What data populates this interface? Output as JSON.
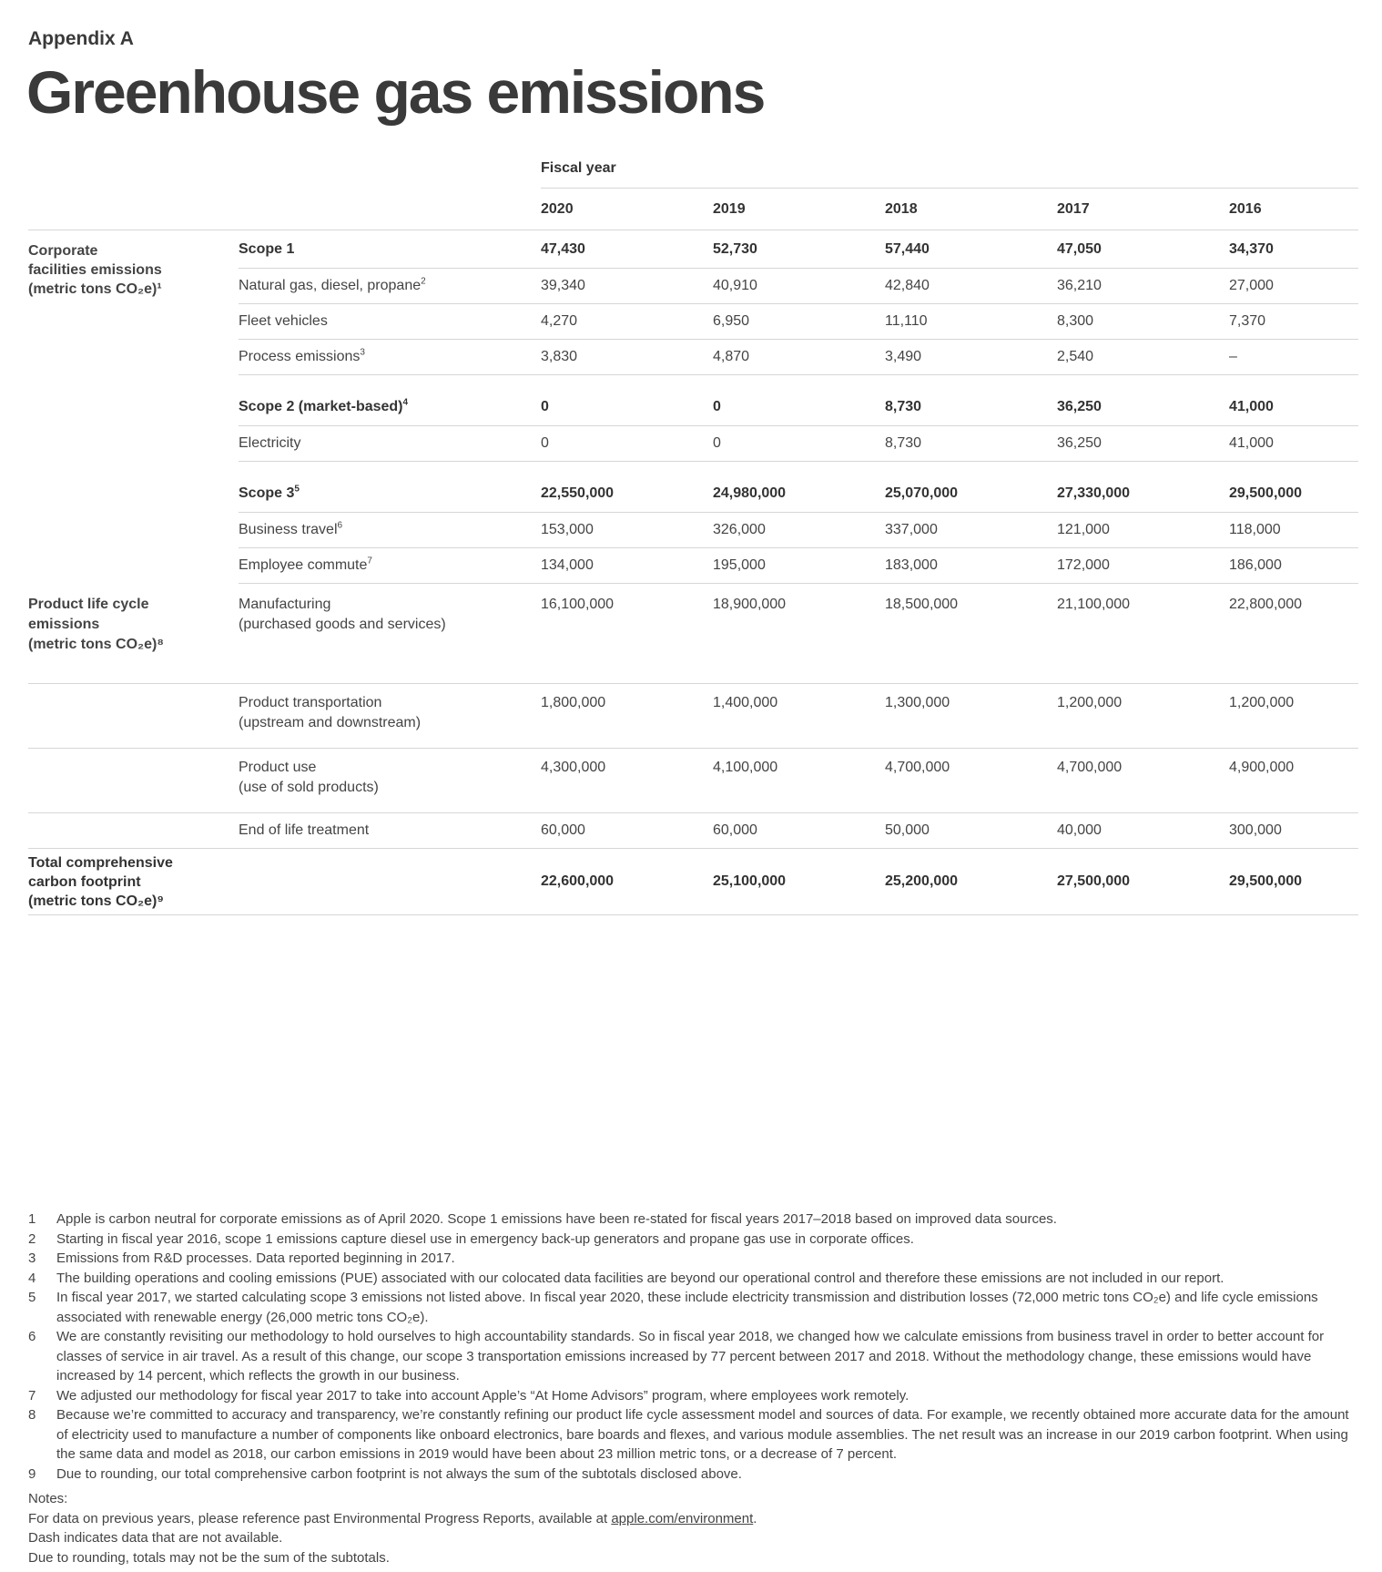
{
  "header": {
    "kicker": "Appendix A",
    "title": "Greenhouse gas emissions"
  },
  "table": {
    "fiscal_year_label": "Fiscal year",
    "years": [
      "2020",
      "2019",
      "2018",
      "2017",
      "2016"
    ],
    "groups": {
      "corporate": [
        "Corporate",
        "facilities emissions",
        "(metric tons CO₂e)¹"
      ],
      "product": [
        "Product life cycle",
        "emissions",
        "(metric tons CO₂e)⁸"
      ],
      "total": [
        "Total comprehensive",
        "carbon footprint",
        "(metric tons CO₂e)⁹"
      ]
    },
    "rows": [
      {
        "label": "Scope 1",
        "sup": "",
        "values": [
          "47,430",
          "52,730",
          "57,440",
          "47,050",
          "34,370"
        ]
      },
      {
        "label": "Natural gas, diesel, propane",
        "sup": "2",
        "values": [
          "39,340",
          "40,910",
          "42,840",
          "36,210",
          "27,000"
        ]
      },
      {
        "label": "Fleet vehicles",
        "sup": "",
        "values": [
          "4,270",
          "6,950",
          "11,110",
          "8,300",
          "7,370"
        ]
      },
      {
        "label": "Process emissions",
        "sup": "3",
        "values": [
          "3,830",
          "4,870",
          "3,490",
          "2,540",
          "–"
        ]
      },
      {
        "label": "Scope 2 (market-based)",
        "sup": "4",
        "values": [
          "0",
          "0",
          "8,730",
          "36,250",
          "41,000"
        ]
      },
      {
        "label": "Electricity",
        "sup": "",
        "values": [
          "0",
          "0",
          "8,730",
          "36,250",
          "41,000"
        ]
      },
      {
        "label": "Scope 3",
        "sup": "5",
        "values": [
          "22,550,000",
          "24,980,000",
          "25,070,000",
          "27,330,000",
          "29,500,000"
        ]
      },
      {
        "label": "Business travel",
        "sup": "6",
        "values": [
          "153,000",
          "326,000",
          "337,000",
          "121,000",
          "118,000"
        ]
      },
      {
        "label": "Employee commute",
        "sup": "7",
        "values": [
          "134,000",
          "195,000",
          "183,000",
          "172,000",
          "186,000"
        ]
      },
      {
        "label": "Manufacturing",
        "label2": "(purchased goods and services)",
        "values": [
          "16,100,000",
          "18,900,000",
          "18,500,000",
          "21,100,000",
          "22,800,000"
        ]
      },
      {
        "label": "Product transportation",
        "label2": "(upstream and downstream)",
        "values": [
          "1,800,000",
          "1,400,000",
          "1,300,000",
          "1,200,000",
          "1,200,000"
        ]
      },
      {
        "label": "Product use",
        "label2": "(use of sold products)",
        "values": [
          "4,300,000",
          "4,100,000",
          "4,700,000",
          "4,700,000",
          "4,900,000"
        ]
      },
      {
        "label": "End of life treatment",
        "values": [
          "60,000",
          "60,000",
          "50,000",
          "40,000",
          "300,000"
        ]
      },
      {
        "label": "",
        "values": [
          "22,600,000",
          "25,100,000",
          "25,200,000",
          "27,500,000",
          "29,500,000"
        ]
      }
    ]
  },
  "footnotes": [
    {
      "n": "1",
      "text": "Apple is carbon neutral for corporate emissions as of April 2020. Scope 1 emissions have been re-stated for fiscal years 2017–2018 based on improved data sources."
    },
    {
      "n": "2",
      "text": "Starting in fiscal year 2016, scope 1 emissions capture diesel use in emergency back-up generators and propane gas use in corporate offices."
    },
    {
      "n": "3",
      "text": "Emissions from R&D processes. Data reported beginning in 2017."
    },
    {
      "n": "4",
      "text": "The building operations and cooling emissions (PUE) associated with our colocated data facilities are beyond our operational control and therefore these emissions are not included in our report."
    },
    {
      "n": "5",
      "text": "In fiscal year 2017, we started calculating scope 3 emissions not listed above. In fiscal year 2020, these include electricity transmission and distribution losses (72,000 metric tons CO₂e) and life cycle emissions associated with renewable energy (26,000 metric tons CO₂e)."
    },
    {
      "n": "6",
      "text": "We are constantly revisiting our methodology to hold ourselves to high accountability standards. So in fiscal year 2018, we changed how we calculate emissions from business travel in order to better account for classes of service in air travel. As a result of this change, our scope 3 transportation emissions increased by 77 percent between 2017 and 2018. Without the methodology change, these emissions would have increased by 14 percent, which reflects the growth in our business."
    },
    {
      "n": "7",
      "text": "We adjusted our methodology for fiscal year 2017 to take into account Apple’s “At Home Advisors” program, where employees work remotely."
    },
    {
      "n": "8",
      "text": "Because we’re committed to accuracy and transparency, we’re constantly refining our product life cycle assessment model and sources of data. For example, we recently obtained more accurate data for the amount of electricity used to manufacture a number of components like onboard electronics, bare boards and flexes, and various module assemblies. The net result was an increase in our 2019 carbon footprint. When using the same data and model as 2018, our carbon emissions in 2019 would have been about 23 million metric tons, or a decrease of 7 percent."
    },
    {
      "n": "9",
      "text": "Due to rounding, our total comprehensive carbon footprint is not always the sum of the subtotals disclosed above."
    }
  ],
  "notes": {
    "heading": "Notes:",
    "line1_prefix": "For data on previous years, please reference past Environmental Progress Reports, available at ",
    "line1_link": "apple.com/environment",
    "line1_suffix": ".",
    "line2": "Dash indicates data that are not available.",
    "line3": "Due to rounding, totals may not be the sum of the subtotals."
  }
}
